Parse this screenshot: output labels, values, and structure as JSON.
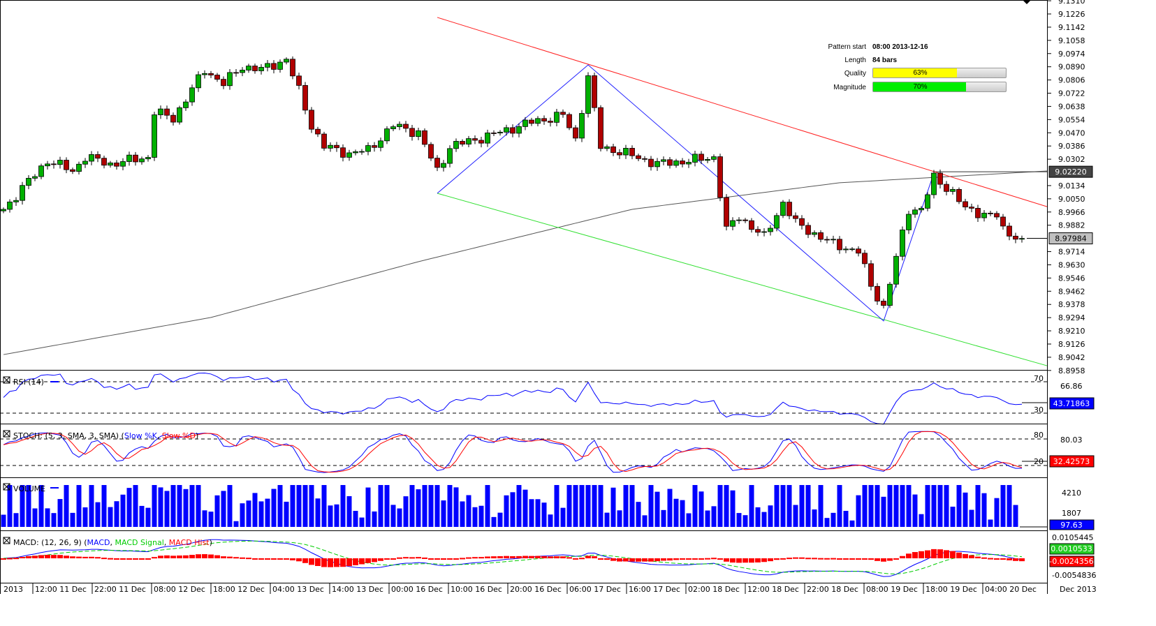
{
  "pattern_info": {
    "pattern_start_label": "Pattern start",
    "pattern_start_value": "08:00 2013-12-16",
    "length_label": "Length",
    "length_value": "84 bars",
    "quality_label": "Quality",
    "quality_value": "63%",
    "quality_fraction": 0.63,
    "magnitude_label": "Magnitude",
    "magnitude_value": "70%",
    "magnitude_fraction": 0.7
  },
  "chart_data": {
    "type": "candlestick",
    "bar_count": 163,
    "price_path": [
      [
        0,
        8.9983
      ],
      [
        2,
        9.0072
      ],
      [
        7,
        9.0294
      ],
      [
        11,
        9.0227
      ],
      [
        13,
        9.0316
      ],
      [
        17,
        9.0271
      ],
      [
        23,
        9.0316
      ],
      [
        24,
        9.0604
      ],
      [
        27,
        9.056
      ],
      [
        32,
        9.0871
      ],
      [
        35,
        9.0782
      ],
      [
        38,
        9.0893
      ],
      [
        41,
        9.0871
      ],
      [
        45,
        9.0937
      ],
      [
        47,
        9.0738
      ],
      [
        49,
        9.0516
      ],
      [
        51,
        9.0382
      ],
      [
        55,
        9.0338
      ],
      [
        58,
        9.036
      ],
      [
        62,
        9.0516
      ],
      [
        66,
        9.0471
      ],
      [
        69,
        9.0227
      ],
      [
        71,
        9.0382
      ],
      [
        77,
        9.0449
      ],
      [
        84,
        9.0538
      ],
      [
        89,
        9.0582
      ],
      [
        91,
        9.0427
      ],
      [
        93,
        9.0826
      ],
      [
        95,
        9.0382
      ],
      [
        99,
        9.0338
      ],
      [
        104,
        9.0271
      ],
      [
        111,
        9.0302
      ],
      [
        113,
        9.0316
      ],
      [
        115,
        8.985
      ],
      [
        117,
        8.9938
      ],
      [
        121,
        8.9805
      ],
      [
        124,
        9.0027
      ],
      [
        126,
        8.9894
      ],
      [
        132,
        8.9761
      ],
      [
        136,
        8.9716
      ],
      [
        138,
        8.9494
      ],
      [
        140,
        8.9361
      ],
      [
        142,
        8.9672
      ],
      [
        144,
        8.9983
      ],
      [
        146,
        8.9983
      ],
      [
        148,
        9.0183
      ],
      [
        151,
        9.0094
      ],
      [
        153,
        8.9983
      ],
      [
        158,
        8.9938
      ],
      [
        159,
        8.985
      ],
      [
        162,
        8.9798
      ]
    ],
    "price_axis_ticks": [
      "9.1310",
      "9.1226",
      "9.1142",
      "9.1058",
      "9.0974",
      "9.0890",
      "9.0806",
      "9.0722",
      "9.0638",
      "9.0554",
      "9.0470",
      "9.0386",
      "9.0302",
      "9.0134",
      "9.0050",
      "8.9966",
      "8.9882",
      "8.9714",
      "8.9630",
      "8.9546",
      "8.9462",
      "8.9378",
      "8.9294",
      "8.9210",
      "8.9126",
      "8.9042",
      "8.8958"
    ],
    "moving_average_label": "9.02220",
    "moving_average_path": [
      [
        0,
        8.9059
      ],
      [
        33,
        8.9295
      ],
      [
        66,
        8.965
      ],
      [
        100,
        8.9983
      ],
      [
        133,
        9.0152
      ],
      [
        166,
        9.0227
      ]
    ],
    "last_price_label": "8.97984",
    "last_price": 8.97984,
    "resistance_line": [
      [
        69,
        9.1204
      ],
      [
        166,
        9.0
      ]
    ],
    "support_line": [
      [
        69,
        9.0085
      ],
      [
        166,
        8.8988
      ]
    ],
    "zigzag": [
      [
        69,
        9.0085
      ],
      [
        93,
        9.0902
      ],
      [
        140,
        8.9273
      ],
      [
        148,
        9.0214
      ]
    ],
    "x_tick_labels": [
      "2013",
      "12:00 11 Dec",
      "22:00 11 Dec",
      "08:00 12 Dec",
      "18:00 12 Dec",
      "04:00 13 Dec",
      "14:00 13 Dec",
      "00:00 16 Dec",
      "10:00 16 Dec",
      "20:00 16 Dec",
      "06:00 17 Dec",
      "16:00 17 Dec",
      "02:00 18 Dec",
      "12:00 18 Dec",
      "22:00 18 Dec",
      "08:00 19 Dec",
      "18:00 19 Dec",
      "04:00 20 Dec"
    ],
    "x_axis_right_label": "Dec 2013",
    "colors": {
      "up": "#00b000",
      "down": "#b00000",
      "resistance": "#ff2020",
      "support": "#30e030",
      "zigzag": "#2020ff",
      "ma": "#555555"
    }
  },
  "indicators": {
    "rsi": {
      "title": "RSI (14)",
      "level_high": "70",
      "level_low": "30",
      "axis_label": "66.86",
      "current": "43.71863"
    },
    "stoch": {
      "title": "STOCH: (5, 3, SMA, 3, SMA) (",
      "k_label": "Slow %K",
      "sep": ", ",
      "d_label": "Slow %D",
      "close": ")",
      "level_high": "80",
      "level_low": "20",
      "axis_label": "80.03",
      "current": "32.42573"
    },
    "volume": {
      "title": "VOLUME",
      "axis_high": "4210",
      "axis_mid": "1807",
      "current": "97.63"
    },
    "macd": {
      "title": "MACD: (12, 26, 9) (",
      "macd_label": "MACD",
      "sep1": ", ",
      "signal_label": "MACD Signal",
      "sep2": ", ",
      "hist_label": "MACD Hist",
      "close": ")",
      "axis_high": "0.0105445",
      "signal_value": "0.0010533",
      "current": "-0.0024356",
      "axis_low": "-0.0054836"
    }
  }
}
